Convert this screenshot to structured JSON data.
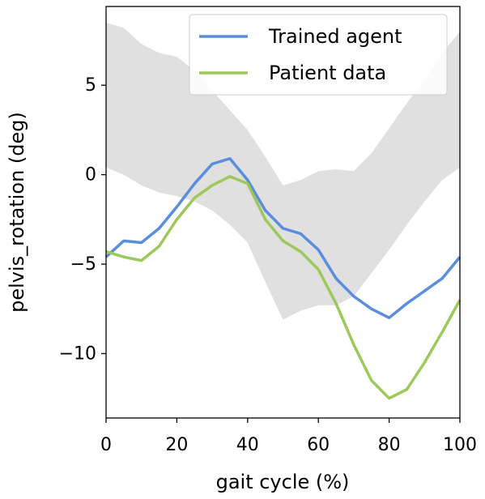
{
  "chart_data": {
    "type": "line",
    "xlabel": "gait cycle (%)",
    "ylabel": "pelvis_rotation (deg)",
    "x": [
      0,
      5,
      10,
      15,
      20,
      25,
      30,
      35,
      40,
      45,
      50,
      55,
      60,
      65,
      70,
      75,
      80,
      85,
      90,
      95,
      100
    ],
    "series": [
      {
        "name": "Trained agent",
        "color": "#5b8ddf",
        "values": [
          -4.6,
          -3.7,
          -3.8,
          -3.0,
          -1.8,
          -0.5,
          0.6,
          0.9,
          -0.3,
          -2.0,
          -3.0,
          -3.3,
          -4.2,
          -5.8,
          -6.8,
          -7.5,
          -8.0,
          -7.2,
          -6.5,
          -5.8,
          -4.6
        ]
      },
      {
        "name": "Patient data",
        "color": "#9cc95a",
        "values": [
          -4.3,
          -4.6,
          -4.8,
          -4.0,
          -2.5,
          -1.3,
          -0.6,
          -0.1,
          -0.5,
          -2.5,
          -3.7,
          -4.3,
          -5.3,
          -7.2,
          -9.5,
          -11.5,
          -12.5,
          -12.0,
          -10.5,
          -8.8,
          -7.0
        ]
      }
    ],
    "band": {
      "color": "#e0e0e0",
      "upper": [
        8.5,
        8.2,
        7.3,
        6.8,
        6.6,
        5.8,
        4.7,
        3.6,
        2.5,
        1.0,
        -0.6,
        -0.3,
        0.2,
        0.3,
        0.2,
        1.2,
        2.6,
        4.0,
        5.3,
        6.8,
        8.0
      ],
      "lower": [
        0.4,
        0.0,
        -0.6,
        -1.0,
        -1.2,
        -1.5,
        -2.0,
        -2.8,
        -3.8,
        -6.0,
        -8.1,
        -7.6,
        -7.3,
        -7.3,
        -6.8,
        -5.5,
        -4.2,
        -2.8,
        -1.5,
        -0.3,
        0.4
      ]
    },
    "xlim": [
      0,
      100
    ],
    "xticks": [
      0,
      20,
      40,
      60,
      80,
      100
    ],
    "ylim": [
      -13.6,
      9.4
    ],
    "yticks": [
      {
        "value": -10,
        "label": "−10"
      },
      {
        "value": -5,
        "label": "−5"
      },
      0,
      5
    ],
    "legend": "upper right"
  }
}
